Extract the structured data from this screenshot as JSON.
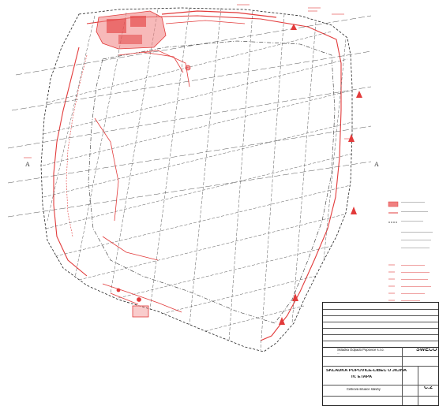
{
  "drawing": {
    "compass_left": "A",
    "compass_right": "A",
    "title_block": {
      "company_line1": "Skládka Odpadů Popovice s.r.o.",
      "company_line2": "...",
      "project_title": "SKLÁDKA POPOVICE-LIBEC U JIČÍNA",
      "project_subtitle": "IV. ETAPA",
      "sheet_title": "Celková situace stavby",
      "firm": "SWECO",
      "sheet_no": "C.2"
    }
  },
  "colors": {
    "red": "#e23b3b",
    "black": "#222222",
    "grid": "#444444",
    "fill_red": "#f08080"
  },
  "icons": [
    "north-arrow-icon"
  ]
}
